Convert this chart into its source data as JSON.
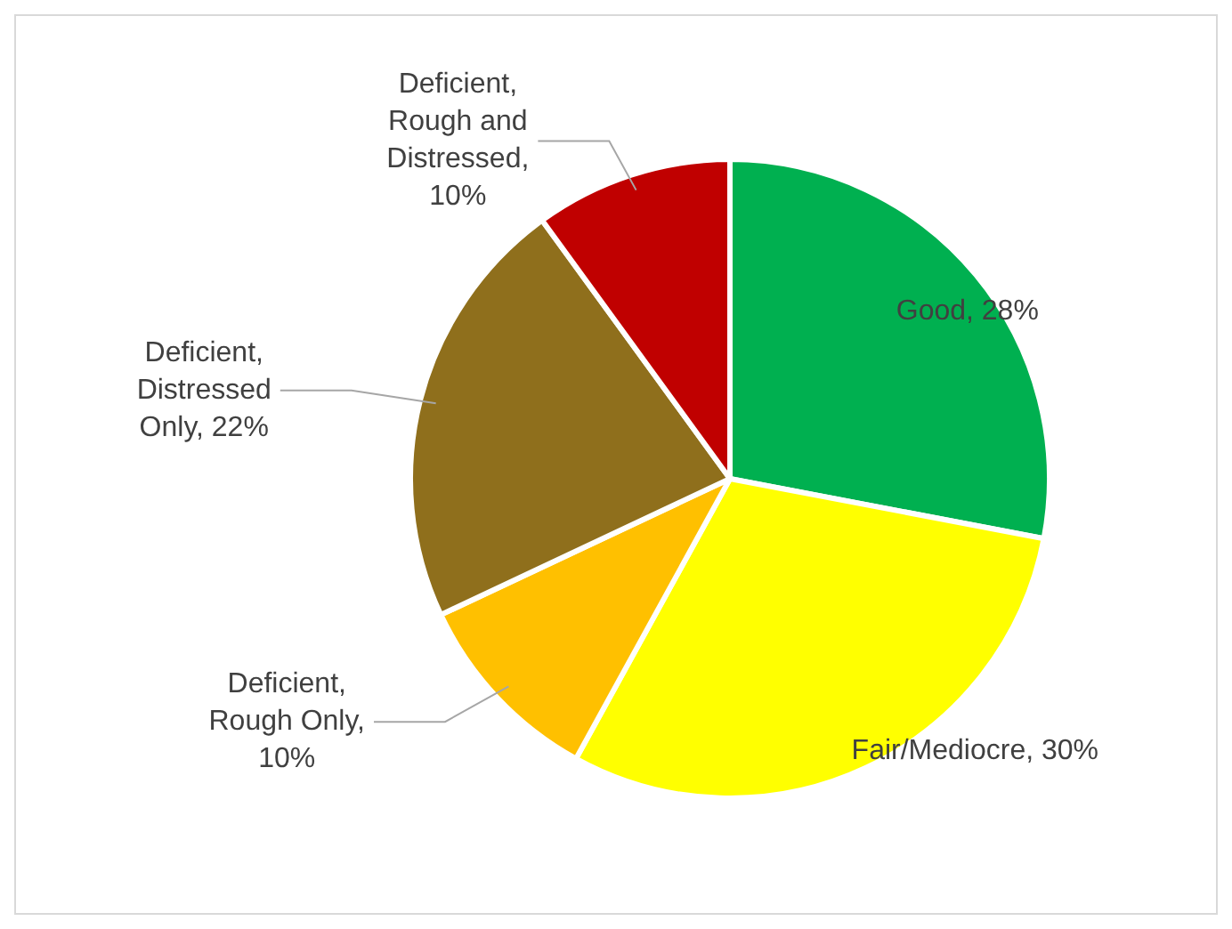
{
  "chart_data": {
    "type": "pie",
    "categories": [
      "Good, 28%",
      "Fair/Mediocre, 30%",
      "Deficient, Rough Only, 10%",
      "Deficient, Distressed Only, 22%",
      "Deficient, Rough and Distressed, 10%"
    ],
    "values": [
      28,
      30,
      10,
      22,
      10
    ],
    "colors": [
      "#00b050",
      "#ffff00",
      "#ffc000",
      "#8f6f1c",
      "#c00000"
    ],
    "legend": false
  }
}
